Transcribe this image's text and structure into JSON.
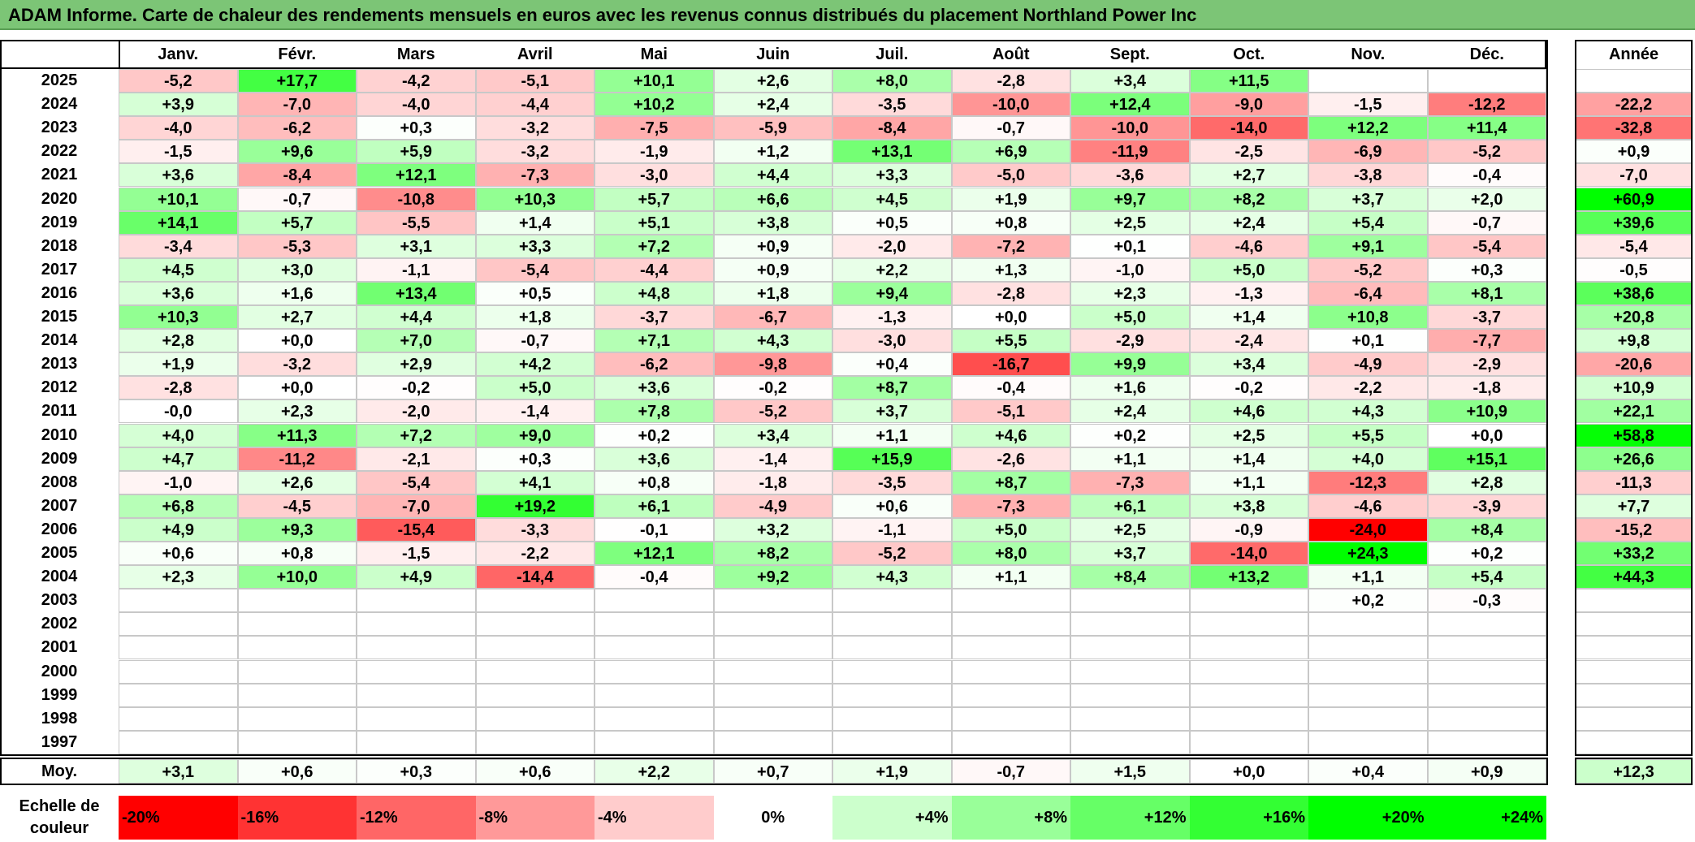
{
  "chart_data": {
    "type": "heatmap",
    "title": "ADAM Informe. Carte de chaleur des rendements mensuels en euros avec les revenus connus distribués du placement Northland Power Inc",
    "months": [
      "Janv.",
      "Févr.",
      "Mars",
      "Avril",
      "Mai",
      "Juin",
      "Juil.",
      "Août",
      "Sept.",
      "Oct.",
      "Nov.",
      "Déc."
    ],
    "year_header": "Année",
    "rows": [
      {
        "year": "2025",
        "values": [
          "-5,2",
          "+17,7",
          "-4,2",
          "-5,1",
          "+10,1",
          "+2,6",
          "+8,0",
          "-2,8",
          "+3,4",
          "+11,5",
          "",
          ""
        ],
        "annual": ""
      },
      {
        "year": "2024",
        "values": [
          "+3,9",
          "-7,0",
          "-4,0",
          "-4,4",
          "+10,2",
          "+2,4",
          "-3,5",
          "-10,0",
          "+12,4",
          "-9,0",
          "-1,5",
          "-12,2"
        ],
        "annual": "-22,2"
      },
      {
        "year": "2023",
        "values": [
          "-4,0",
          "-6,2",
          "+0,3",
          "-3,2",
          "-7,5",
          "-5,9",
          "-8,4",
          "-0,7",
          "-10,0",
          "-14,0",
          "+12,2",
          "+11,4"
        ],
        "annual": "-32,8"
      },
      {
        "year": "2022",
        "values": [
          "-1,5",
          "+9,6",
          "+5,9",
          "-3,2",
          "-1,9",
          "+1,2",
          "+13,1",
          "+6,9",
          "-11,9",
          "-2,5",
          "-6,9",
          "-5,2"
        ],
        "annual": "+0,9"
      },
      {
        "year": "2021",
        "values": [
          "+3,6",
          "-8,4",
          "+12,1",
          "-7,3",
          "-3,0",
          "+4,4",
          "+3,3",
          "-5,0",
          "-3,6",
          "+2,7",
          "-3,8",
          "-0,4"
        ],
        "annual": "-7,0"
      },
      {
        "year": "2020",
        "values": [
          "+10,1",
          "-0,7",
          "-10,8",
          "+10,3",
          "+5,7",
          "+6,6",
          "+4,5",
          "+1,9",
          "+9,7",
          "+8,2",
          "+3,7",
          "+2,0"
        ],
        "annual": "+60,9"
      },
      {
        "year": "2019",
        "values": [
          "+14,1",
          "+5,7",
          "-5,5",
          "+1,4",
          "+5,1",
          "+3,8",
          "+0,5",
          "+0,8",
          "+2,5",
          "+2,4",
          "+5,4",
          "-0,7"
        ],
        "annual": "+39,6"
      },
      {
        "year": "2018",
        "values": [
          "-3,4",
          "-5,3",
          "+3,1",
          "+3,3",
          "+7,2",
          "+0,9",
          "-2,0",
          "-7,2",
          "+0,1",
          "-4,6",
          "+9,1",
          "-5,4"
        ],
        "annual": "-5,4"
      },
      {
        "year": "2017",
        "values": [
          "+4,5",
          "+3,0",
          "-1,1",
          "-5,4",
          "-4,4",
          "+0,9",
          "+2,2",
          "+1,3",
          "-1,0",
          "+5,0",
          "-5,2",
          "+0,3"
        ],
        "annual": "-0,5"
      },
      {
        "year": "2016",
        "values": [
          "+3,6",
          "+1,6",
          "+13,4",
          "+0,5",
          "+4,8",
          "+1,8",
          "+9,4",
          "-2,8",
          "+2,3",
          "-1,3",
          "-6,4",
          "+8,1"
        ],
        "annual": "+38,6"
      },
      {
        "year": "2015",
        "values": [
          "+10,3",
          "+2,7",
          "+4,4",
          "+1,8",
          "-3,7",
          "-6,7",
          "-1,3",
          "+0,0",
          "+5,0",
          "+1,4",
          "+10,8",
          "-3,7"
        ],
        "annual": "+20,8"
      },
      {
        "year": "2014",
        "values": [
          "+2,8",
          "+0,0",
          "+7,0",
          "-0,7",
          "+7,1",
          "+4,3",
          "-3,0",
          "+5,5",
          "-2,9",
          "-2,4",
          "+0,1",
          "-7,7"
        ],
        "annual": "+9,8"
      },
      {
        "year": "2013",
        "values": [
          "+1,9",
          "-3,2",
          "+2,9",
          "+4,2",
          "-6,2",
          "-9,8",
          "+0,4",
          "-16,7",
          "+9,9",
          "+3,4",
          "-4,9",
          "-2,9"
        ],
        "annual": "-20,6"
      },
      {
        "year": "2012",
        "values": [
          "-2,8",
          "+0,0",
          "-0,2",
          "+5,0",
          "+3,6",
          "-0,2",
          "+8,7",
          "-0,4",
          "+1,6",
          "-0,2",
          "-2,2",
          "-1,8"
        ],
        "annual": "+10,9"
      },
      {
        "year": "2011",
        "values": [
          "-0,0",
          "+2,3",
          "-2,0",
          "-1,4",
          "+7,8",
          "-5,2",
          "+3,7",
          "-5,1",
          "+2,4",
          "+4,6",
          "+4,3",
          "+10,9"
        ],
        "annual": "+22,1"
      },
      {
        "year": "2010",
        "values": [
          "+4,0",
          "+11,3",
          "+7,2",
          "+9,0",
          "+0,2",
          "+3,4",
          "+1,1",
          "+4,6",
          "+0,2",
          "+2,5",
          "+5,5",
          "+0,0"
        ],
        "annual": "+58,8"
      },
      {
        "year": "2009",
        "values": [
          "+4,7",
          "-11,2",
          "-2,1",
          "+0,3",
          "+3,6",
          "-1,4",
          "+15,9",
          "-2,6",
          "+1,1",
          "+1,4",
          "+4,0",
          "+15,1"
        ],
        "annual": "+26,6"
      },
      {
        "year": "2008",
        "values": [
          "-1,0",
          "+2,6",
          "-5,4",
          "+4,1",
          "+0,8",
          "-1,8",
          "-3,5",
          "+8,7",
          "-7,3",
          "+1,1",
          "-12,3",
          "+2,8"
        ],
        "annual": "-11,3"
      },
      {
        "year": "2007",
        "values": [
          "+6,8",
          "-4,5",
          "-7,0",
          "+19,2",
          "+6,1",
          "-4,9",
          "+0,6",
          "-7,3",
          "+6,1",
          "+3,8",
          "-4,6",
          "-3,9"
        ],
        "annual": "+7,7"
      },
      {
        "year": "2006",
        "values": [
          "+4,9",
          "+9,3",
          "-15,4",
          "-3,3",
          "-0,1",
          "+3,2",
          "-1,1",
          "+5,0",
          "+2,5",
          "-0,9",
          "-24,0",
          "+8,4"
        ],
        "annual": "-15,2"
      },
      {
        "year": "2005",
        "values": [
          "+0,6",
          "+0,8",
          "-1,5",
          "-2,2",
          "+12,1",
          "+8,2",
          "-5,2",
          "+8,0",
          "+3,7",
          "-14,0",
          "+24,3",
          "+0,2"
        ],
        "annual": "+33,2"
      },
      {
        "year": "2004",
        "values": [
          "+2,3",
          "+10,0",
          "+4,9",
          "-14,4",
          "-0,4",
          "+9,2",
          "+4,3",
          "+1,1",
          "+8,4",
          "+13,2",
          "+1,1",
          "+5,4"
        ],
        "annual": "+44,3"
      },
      {
        "year": "2003",
        "values": [
          "",
          "",
          "",
          "",
          "",
          "",
          "",
          "",
          "",
          "",
          "+0,2",
          "-0,3"
        ],
        "annual": ""
      },
      {
        "year": "2002",
        "values": [
          "",
          "",
          "",
          "",
          "",
          "",
          "",
          "",
          "",
          "",
          "",
          ""
        ],
        "annual": ""
      },
      {
        "year": "2001",
        "values": [
          "",
          "",
          "",
          "",
          "",
          "",
          "",
          "",
          "",
          "",
          "",
          ""
        ],
        "annual": ""
      },
      {
        "year": "2000",
        "values": [
          "",
          "",
          "",
          "",
          "",
          "",
          "",
          "",
          "",
          "",
          "",
          ""
        ],
        "annual": ""
      },
      {
        "year": "1999",
        "values": [
          "",
          "",
          "",
          "",
          "",
          "",
          "",
          "",
          "",
          "",
          "",
          ""
        ],
        "annual": ""
      },
      {
        "year": "1998",
        "values": [
          "",
          "",
          "",
          "",
          "",
          "",
          "",
          "",
          "",
          "",
          "",
          ""
        ],
        "annual": ""
      },
      {
        "year": "1997",
        "values": [
          "",
          "",
          "",
          "",
          "",
          "",
          "",
          "",
          "",
          "",
          "",
          ""
        ],
        "annual": ""
      }
    ],
    "average": {
      "label": "Moy.",
      "values": [
        "+3,1",
        "+0,6",
        "+0,3",
        "+0,6",
        "+2,2",
        "+0,7",
        "+1,9",
        "-0,7",
        "+1,5",
        "+0,0",
        "+0,4",
        "+0,9"
      ],
      "annual": "+12,3"
    },
    "legend": {
      "label_line1": "Echelle de",
      "label_line2": "couleur",
      "steps": [
        {
          "label": "-20%",
          "value": -20,
          "color": "#ff0000"
        },
        {
          "label": "-16%",
          "value": -16,
          "color": "#ff3333"
        },
        {
          "label": "-12%",
          "value": -12,
          "color": "#ff6666"
        },
        {
          "label": "-8%",
          "value": -8,
          "color": "#ff9999"
        },
        {
          "label": "-4%",
          "value": -4,
          "color": "#ffcccc"
        },
        {
          "label": "0%",
          "value": 0,
          "color": "#ffffff"
        },
        {
          "label": "+4%",
          "value": 4,
          "color": "#ccffcc"
        },
        {
          "label": "+8%",
          "value": 8,
          "color": "#99ff99"
        },
        {
          "label": "+12%",
          "value": 12,
          "color": "#66ff66"
        },
        {
          "label": "+16%",
          "value": 16,
          "color": "#33ff33"
        },
        {
          "label": "+20%",
          "value": 20,
          "color": "#00ff00"
        },
        {
          "label": "+24%",
          "value": 24,
          "color": "#00ff00"
        }
      ]
    }
  }
}
